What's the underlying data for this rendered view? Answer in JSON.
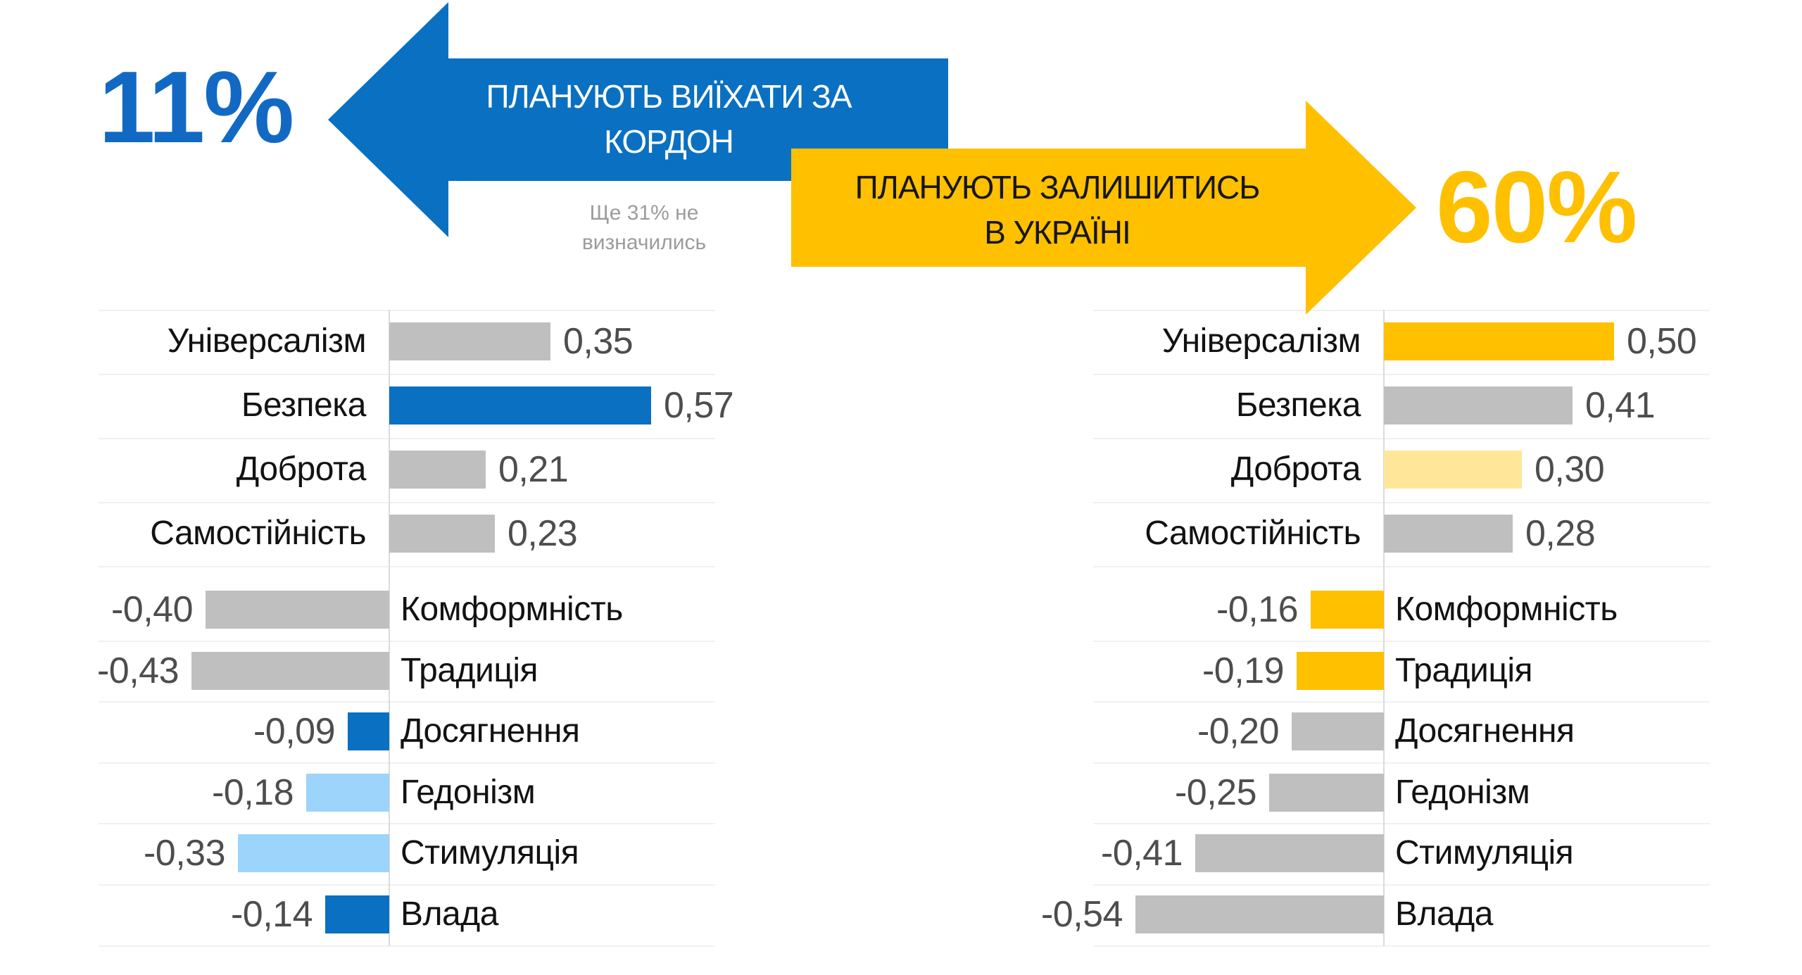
{
  "palette": {
    "blue": "#0A70C2",
    "lightblue": "#9DD4FB",
    "yellow": "#FFC000",
    "lightyellow": "#FFE699",
    "gray": "#BFBFBF",
    "percent_blue": "#1269C4",
    "percent_yellow": "#FFC000"
  },
  "header": {
    "leave": {
      "percent": "11%",
      "title_line1": "ПЛАНУЮТЬ ВИЇХАТИ ЗА",
      "title_line2": "КОРДОН"
    },
    "stay": {
      "percent": "60%",
      "title_line1": "ПЛАНУЮТЬ ЗАЛИШИТИСЬ",
      "title_line2": "В УКРАЇНІ"
    },
    "undecided_line1": "Ще 31% не",
    "undecided_line2": "визначились"
  },
  "chart_data": [
    {
      "id": "leave-chart",
      "type": "bar",
      "orientation": "horizontal",
      "title": "ПЛАНУЮТЬ ВИЇХАТИ ЗА КОРДОН",
      "group_percent": "11%",
      "xlim": [
        -0.6,
        0.6
      ],
      "categories": [
        "Універсалізм",
        "Безпека",
        "Доброта",
        "Самостійність",
        "Комформність",
        "Традиція",
        "Досягнення",
        "Гедонізм",
        "Стимуляція",
        "Влада"
      ],
      "values": [
        0.35,
        0.57,
        0.21,
        0.23,
        -0.4,
        -0.43,
        -0.09,
        -0.18,
        -0.33,
        -0.14
      ],
      "value_labels": [
        "0,35",
        "0,57",
        "0,21",
        "0,23",
        "-0,40",
        "-0,43",
        "-0,09",
        "-0,18",
        "-0,33",
        "-0,14"
      ],
      "bar_colors": [
        "gray",
        "blue",
        "gray",
        "gray",
        "gray",
        "gray",
        "blue",
        "lightblue",
        "lightblue",
        "blue"
      ]
    },
    {
      "id": "stay-chart",
      "type": "bar",
      "orientation": "horizontal",
      "title": "ПЛАНУЮТЬ ЗАЛИШИТИСЬ В УКРАЇНІ",
      "group_percent": "60%",
      "xlim": [
        -0.6,
        0.6
      ],
      "categories": [
        "Універсалізм",
        "Безпека",
        "Доброта",
        "Самостійність",
        "Комформність",
        "Традиція",
        "Досягнення",
        "Гедонізм",
        "Стимуляція",
        "Влада"
      ],
      "values": [
        0.5,
        0.41,
        0.3,
        0.28,
        -0.16,
        -0.19,
        -0.2,
        -0.25,
        -0.41,
        -0.54
      ],
      "value_labels": [
        "0,50",
        "0,41",
        "0,30",
        "0,28",
        "-0,16",
        "-0,19",
        "-0,20",
        "-0,25",
        "-0,41",
        "-0,54"
      ],
      "bar_colors": [
        "yellow",
        "gray",
        "lightyellow",
        "gray",
        "yellow",
        "yellow",
        "gray",
        "gray",
        "gray",
        "gray"
      ]
    }
  ]
}
